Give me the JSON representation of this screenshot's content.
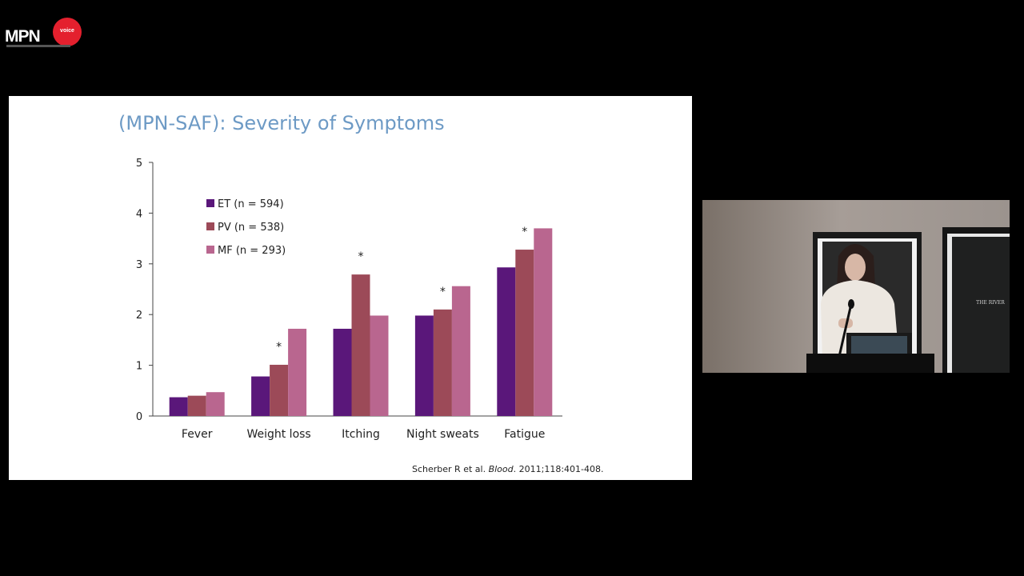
{
  "logo": {
    "text": "MPN",
    "badge_text": "voice"
  },
  "slide": {
    "title": "(MPN-SAF): Severity of Symptoms",
    "citation_authors": "Scherber R et al.",
    "citation_journal": "Blood",
    "citation_details": ". 2011;118:401-408."
  },
  "chart_data": {
    "type": "bar",
    "title": "",
    "xlabel": "",
    "ylabel": "",
    "ylim": [
      0,
      5
    ],
    "yticks": [
      0,
      1,
      2,
      3,
      4,
      5
    ],
    "grid": false,
    "legend_position": "top-left",
    "categories": [
      "Fever",
      "Weight loss",
      "Itching",
      "Night sweats",
      "Fatigue"
    ],
    "series": [
      {
        "name": "ET (n = 594)",
        "color": "#5a177a",
        "values": [
          0.37,
          0.78,
          1.72,
          1.98,
          2.93
        ]
      },
      {
        "name": "PV (n = 538)",
        "color": "#9c4a58",
        "values": [
          0.4,
          1.01,
          2.79,
          2.1,
          3.28
        ]
      },
      {
        "name": "MF (n = 293)",
        "color": "#b9668f",
        "values": [
          0.47,
          1.72,
          1.98,
          2.56,
          3.7
        ]
      }
    ],
    "annotations": [
      {
        "category": "Weight loss",
        "text": "*"
      },
      {
        "category": "Itching",
        "text": "*"
      },
      {
        "category": "Night sweats",
        "text": "*"
      },
      {
        "category": "Fatigue",
        "text": "*"
      }
    ]
  },
  "video": {
    "sign_text": "THE RIVER"
  }
}
